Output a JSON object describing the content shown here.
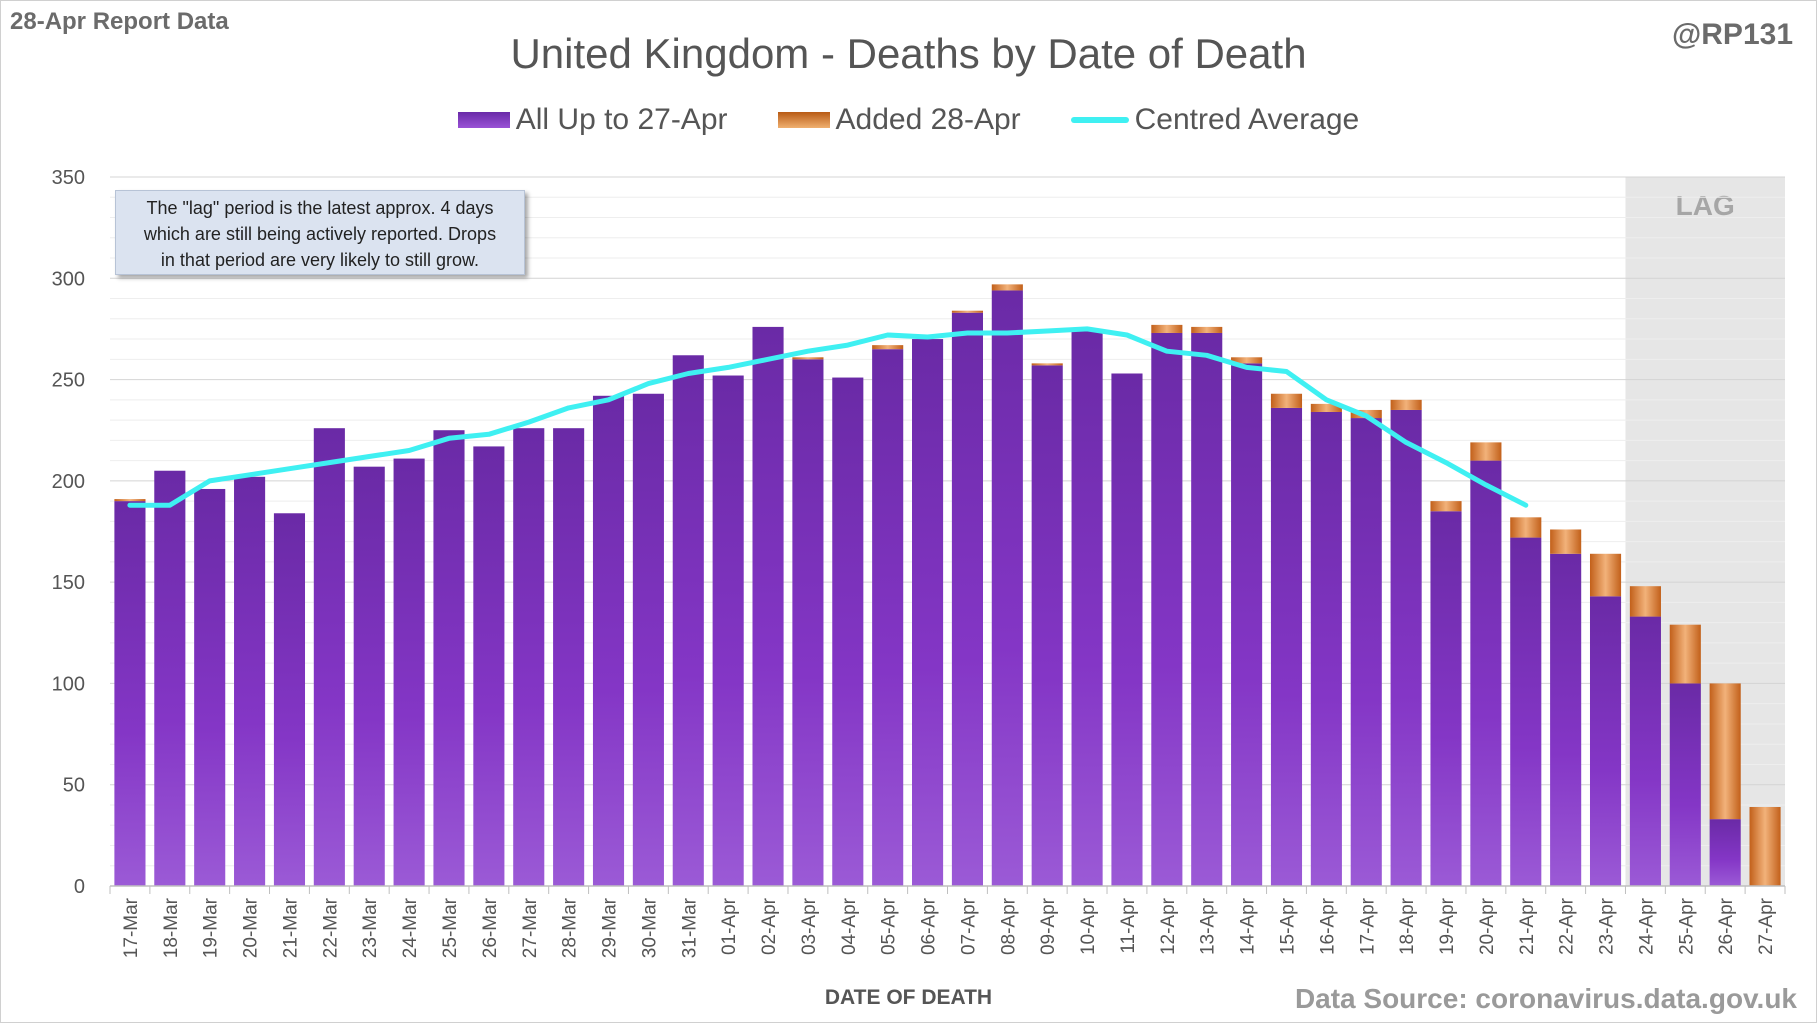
{
  "header": {
    "report_label": "28-Apr Report Data",
    "handle": "@RP131",
    "source": "Data Source: coronavirus.data.gov.uk"
  },
  "note": {
    "lines": [
      "The \"lag\" period is the latest approx. 4 days",
      "which are still being actively reported. Drops",
      "in that period are very likely to still grow."
    ]
  },
  "colors": {
    "purple": "#7a35c0",
    "orange": "#d97a2e",
    "line": "#3ff0f2",
    "lag_shade": "#e6e6e6"
  },
  "chart_data": {
    "type": "bar",
    "stacked": true,
    "title": "United Kingdom - Deaths by Date of Death",
    "xlabel": "DATE OF DEATH",
    "ylabel": "",
    "ylim": [
      0,
      350
    ],
    "yticks": [
      0,
      50,
      100,
      150,
      200,
      250,
      300,
      350
    ],
    "grid": true,
    "legend_position": "top",
    "lag_label": "LAG",
    "lag_categories": [
      "24-Apr",
      "25-Apr",
      "26-Apr",
      "27-Apr"
    ],
    "categories": [
      "17-Mar",
      "18-Mar",
      "19-Mar",
      "20-Mar",
      "21-Mar",
      "22-Mar",
      "23-Mar",
      "24-Mar",
      "25-Mar",
      "26-Mar",
      "27-Mar",
      "28-Mar",
      "29-Mar",
      "30-Mar",
      "31-Mar",
      "01-Apr",
      "02-Apr",
      "03-Apr",
      "04-Apr",
      "05-Apr",
      "06-Apr",
      "07-Apr",
      "08-Apr",
      "09-Apr",
      "10-Apr",
      "11-Apr",
      "12-Apr",
      "13-Apr",
      "14-Apr",
      "15-Apr",
      "16-Apr",
      "17-Apr",
      "18-Apr",
      "19-Apr",
      "20-Apr",
      "21-Apr",
      "22-Apr",
      "23-Apr",
      "24-Apr",
      "25-Apr",
      "26-Apr",
      "27-Apr"
    ],
    "series": [
      {
        "name": "All Up to 27-Apr",
        "type": "bar",
        "values": [
          190,
          205,
          196,
          202,
          184,
          226,
          207,
          211,
          225,
          217,
          226,
          226,
          242,
          243,
          262,
          252,
          276,
          260,
          251,
          265,
          270,
          283,
          294,
          257,
          274,
          253,
          273,
          273,
          258,
          236,
          234,
          231,
          235,
          185,
          210,
          172,
          164,
          143,
          133,
          100,
          33,
          0
        ]
      },
      {
        "name": "Added 28-Apr",
        "type": "bar",
        "values": [
          1,
          0,
          0,
          0,
          0,
          0,
          0,
          0,
          0,
          0,
          0,
          0,
          0,
          0,
          0,
          0,
          0,
          1,
          0,
          2,
          0,
          1,
          3,
          1,
          0,
          0,
          4,
          3,
          3,
          7,
          4,
          4,
          5,
          5,
          9,
          10,
          12,
          21,
          15,
          29,
          67,
          39
        ]
      },
      {
        "name": "Centred Average",
        "type": "line",
        "values": [
          188,
          188,
          200,
          203,
          206,
          209,
          212,
          215,
          221,
          223,
          229,
          236,
          240,
          248,
          253,
          256,
          260,
          264,
          267,
          272,
          271,
          273,
          273,
          274,
          275,
          272,
          264,
          262,
          256,
          254,
          240,
          232,
          219,
          209,
          198,
          188,
          null,
          null,
          null,
          null,
          null,
          null
        ]
      }
    ]
  }
}
